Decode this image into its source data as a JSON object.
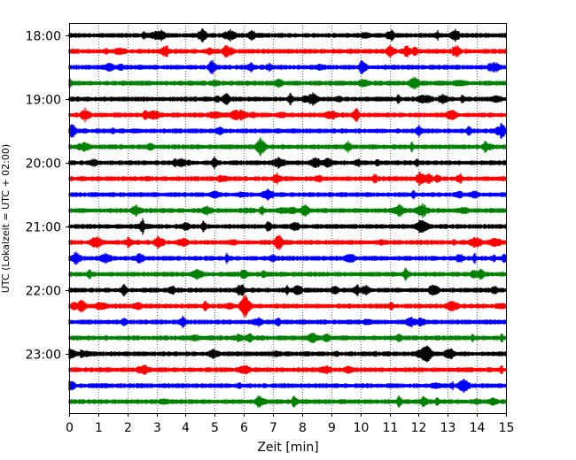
{
  "chart_data": {
    "type": "line",
    "title": "",
    "xlabel": "Zeit  [min]",
    "ylabel": "UTC (Lokalzeit = UTC + 02:00)",
    "xlim": [
      0,
      15
    ],
    "x_ticks": [
      "0",
      "1",
      "2",
      "3",
      "4",
      "5",
      "6",
      "7",
      "8",
      "9",
      "10",
      "11",
      "12",
      "13",
      "14",
      "15"
    ],
    "y_tick_labels": [
      "18:00",
      "19:00",
      "20:00",
      "21:00",
      "22:00",
      "23:00"
    ],
    "x_grid": "dotted vertical lines at each minute",
    "trace_interval_min": 15,
    "start_time_utc": "18:00",
    "color_cycle": [
      "#000000",
      "#ff0000",
      "#0000ff",
      "#008000"
    ],
    "trace_count": 24,
    "traces": [
      {
        "start": "18:00",
        "color": "#000000"
      },
      {
        "start": "18:15",
        "color": "#ff0000"
      },
      {
        "start": "18:30",
        "color": "#0000ff"
      },
      {
        "start": "18:45",
        "color": "#008000"
      },
      {
        "start": "19:00",
        "color": "#000000"
      },
      {
        "start": "19:15",
        "color": "#ff0000"
      },
      {
        "start": "19:30",
        "color": "#0000ff"
      },
      {
        "start": "19:45",
        "color": "#008000"
      },
      {
        "start": "20:00",
        "color": "#000000"
      },
      {
        "start": "20:15",
        "color": "#ff0000"
      },
      {
        "start": "20:30",
        "color": "#0000ff"
      },
      {
        "start": "20:45",
        "color": "#008000"
      },
      {
        "start": "21:00",
        "color": "#000000"
      },
      {
        "start": "21:15",
        "color": "#ff0000"
      },
      {
        "start": "21:30",
        "color": "#0000ff"
      },
      {
        "start": "21:45",
        "color": "#008000"
      },
      {
        "start": "22:00",
        "color": "#000000"
      },
      {
        "start": "22:15",
        "color": "#ff0000"
      },
      {
        "start": "22:30",
        "color": "#0000ff"
      },
      {
        "start": "22:45",
        "color": "#008000"
      },
      {
        "start": "23:00",
        "color": "#000000"
      },
      {
        "start": "23:15",
        "color": "#ff0000"
      },
      {
        "start": "23:30",
        "color": "#0000ff"
      },
      {
        "start": "23:45",
        "color": "#008000"
      }
    ]
  }
}
